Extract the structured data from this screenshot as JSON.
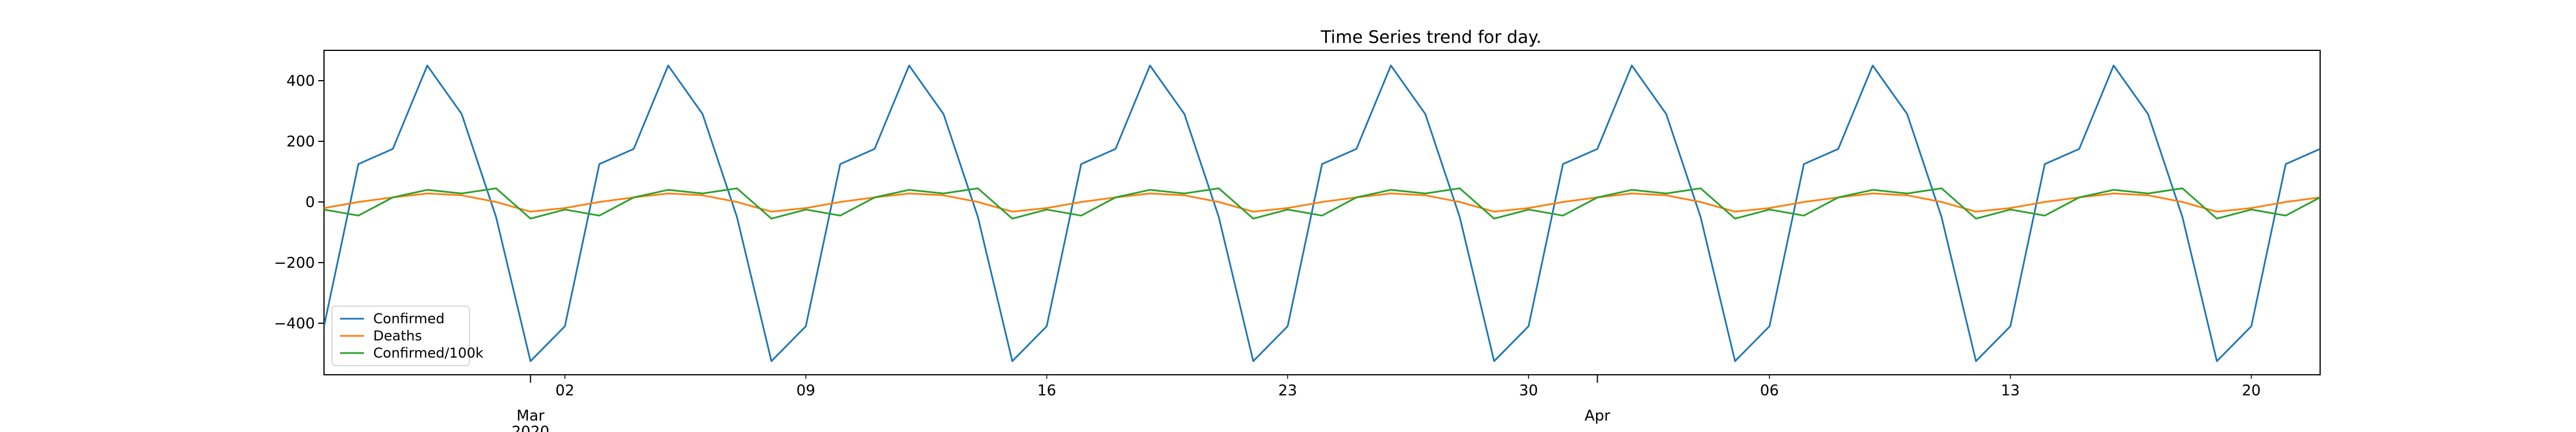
{
  "chart_data": {
    "type": "line",
    "title": "Time Series trend for day.",
    "xlabel": "",
    "ylabel": "",
    "x_range": [
      "2020-02-24",
      "2020-04-22"
    ],
    "ylim": [
      -570,
      500
    ],
    "yticks": [
      400,
      200,
      0,
      -200,
      -400
    ],
    "ytick_labels": [
      "400",
      "200",
      "0",
      "−200",
      "−400"
    ],
    "x_major_ticks": [
      {
        "date": "2020-03-01",
        "label": "Mar",
        "sublabel": "2020"
      },
      {
        "date": "2020-04-01",
        "label": "Apr",
        "sublabel": ""
      }
    ],
    "x_minor_ticks": [
      {
        "date": "2020-03-02",
        "label": "02"
      },
      {
        "date": "2020-03-09",
        "label": "09"
      },
      {
        "date": "2020-03-16",
        "label": "16"
      },
      {
        "date": "2020-03-23",
        "label": "23"
      },
      {
        "date": "2020-03-30",
        "label": "30"
      },
      {
        "date": "2020-04-06",
        "label": "06"
      },
      {
        "date": "2020-04-13",
        "label": "13"
      },
      {
        "date": "2020-04-20",
        "label": "20"
      }
    ],
    "grid": false,
    "legend_position": "lower-left",
    "weekly_pattern_start": "2020-02-24",
    "series": [
      {
        "name": "Confirmed",
        "color": "#1f77b4",
        "weekly_values": [
          -410,
          125,
          175,
          450,
          290,
          -50,
          -525,
          -440
        ]
      },
      {
        "name": "Deaths",
        "color": "#ff7f0e",
        "weekly_values": [
          -20,
          0,
          15,
          28,
          22,
          0,
          -32,
          -20
        ]
      },
      {
        "name": "Confirmed/100k",
        "color": "#2ca02c",
        "weekly_values": [
          -25,
          -45,
          15,
          40,
          28,
          45,
          -55,
          -25
        ]
      }
    ]
  }
}
